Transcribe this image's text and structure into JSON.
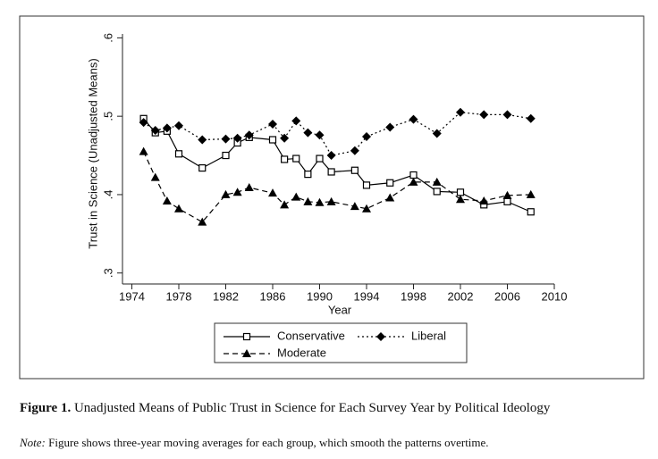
{
  "chart_data": {
    "type": "line",
    "x": [
      1975,
      1976,
      1977,
      1978,
      1980,
      1982,
      1983,
      1984,
      1986,
      1987,
      1988,
      1989,
      1990,
      1991,
      1993,
      1994,
      1996,
      1998,
      2000,
      2002,
      2004,
      2006,
      2008
    ],
    "series": [
      {
        "name": "Conservative",
        "color": "#000000",
        "marker": "square",
        "dash": "solid",
        "values": [
          0.497,
          0.479,
          0.481,
          0.452,
          0.434,
          0.45,
          0.466,
          0.473,
          0.47,
          0.445,
          0.446,
          0.426,
          0.446,
          0.429,
          0.431,
          0.412,
          0.415,
          0.425,
          0.404,
          0.403,
          0.387,
          0.391,
          0.378
        ]
      },
      {
        "name": "Liberal",
        "color": "#000000",
        "marker": "diamond",
        "dash": "dotted",
        "values": [
          0.492,
          0.482,
          0.485,
          0.488,
          0.47,
          0.471,
          0.472,
          0.476,
          0.49,
          0.472,
          0.494,
          0.479,
          0.476,
          0.45,
          0.456,
          0.474,
          0.486,
          0.496,
          0.478,
          0.505,
          0.502,
          0.502,
          0.497
        ]
      },
      {
        "name": "Moderate",
        "color": "#000000",
        "marker": "triangle",
        "dash": "dashed",
        "values": [
          0.455,
          0.422,
          0.392,
          0.382,
          0.365,
          0.4,
          0.403,
          0.409,
          0.402,
          0.387,
          0.397,
          0.391,
          0.39,
          0.391,
          0.385,
          0.382,
          0.396,
          0.416,
          0.416,
          0.394,
          0.392,
          0.399,
          0.4
        ]
      }
    ],
    "x_label": "Year",
    "y_label": "Trust in Science (Unadjusted Means)",
    "xlim": [
      1973.2,
      2010
    ],
    "xticks": [
      1974,
      1978,
      1982,
      1986,
      1990,
      1994,
      1998,
      2002,
      2006,
      2010
    ],
    "ylim": [
      0.286,
      0.605
    ],
    "yticks": [
      {
        "value": 0.3,
        "label": ".3"
      },
      {
        "value": 0.4,
        "label": ".4"
      },
      {
        "value": 0.5,
        "label": ".5"
      },
      {
        "value": 0.6,
        "label": ".6"
      }
    ],
    "legend": "bottom",
    "caption_label": "Figure 1.",
    "caption": "Unadjusted Means of Public Trust in Science for Each Survey Year by Political Ideology",
    "note_label": "Note:",
    "note": "Figure shows three-year moving averages for each group, which smooth the patterns overtime."
  }
}
